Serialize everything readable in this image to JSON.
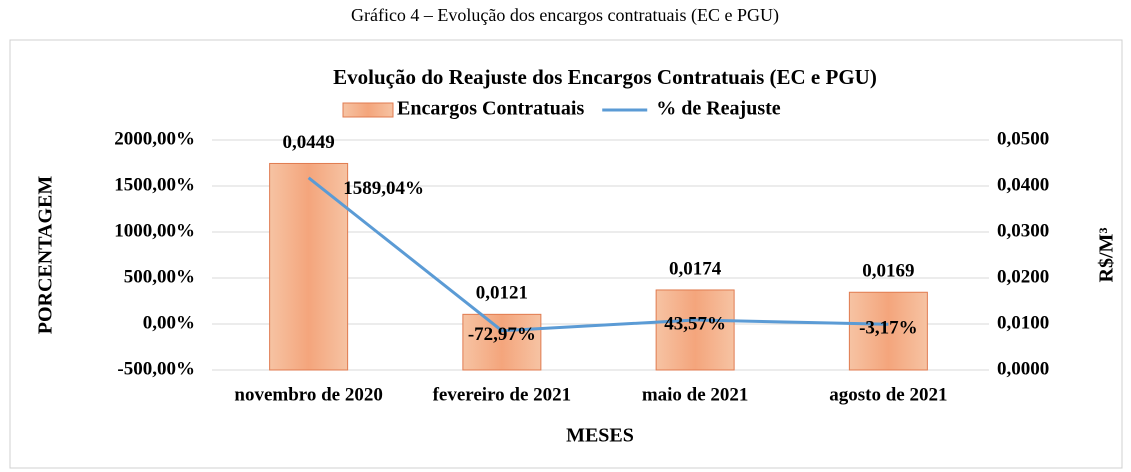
{
  "chart_data": {
    "type": "bar-line",
    "caption": "Gráfico 4 – Evolução dos encargos contratuais (EC e PGU)",
    "title": "Evolução do Reajuste dos Encargos Contratuais (EC e PGU)",
    "x_label": "MESES",
    "y_label": "PORCENTAGEM",
    "y2_label": "R$/M³",
    "categories": [
      "novembro de 2020",
      "fevereiro de 2021",
      "maio de 2021",
      "agosto de 2021"
    ],
    "series": [
      {
        "name": "Encargos Contratuais",
        "type": "bar",
        "axis": "y2",
        "color": "#f4b183",
        "edge": "#e07b50",
        "values": [
          0.0449,
          0.0121,
          0.0174,
          0.0169
        ],
        "value_labels": [
          "0,0449",
          "0,0121",
          "0,0174",
          "0,0169"
        ]
      },
      {
        "name": "% de Reajuste",
        "type": "line",
        "axis": "y",
        "color": "#5b9bd5",
        "values": [
          1589.04,
          -72.97,
          43.57,
          -3.17
        ],
        "value_labels": [
          "1589,04%",
          "-72,97%",
          "43,57%",
          "-3,17%"
        ]
      }
    ],
    "ylim": [
      -500,
      2000
    ],
    "yticks": [
      {
        "value": -500,
        "label": "-500,00%"
      },
      {
        "value": 0,
        "label": "0,00%"
      },
      {
        "value": 500,
        "label": "500,00%"
      },
      {
        "value": 1000,
        "label": "1000,00%"
      },
      {
        "value": 1500,
        "label": "1500,00%"
      },
      {
        "value": 2000,
        "label": "2000,00%"
      }
    ],
    "y2lim": [
      0,
      0.05
    ],
    "y2ticks": [
      {
        "value": 0,
        "label": "0,0000"
      },
      {
        "value": 0.01,
        "label": "0,0100"
      },
      {
        "value": 0.02,
        "label": "0,0200"
      },
      {
        "value": 0.03,
        "label": "0,0300"
      },
      {
        "value": 0.04,
        "label": "0,0400"
      },
      {
        "value": 0.05,
        "label": "0,0500"
      }
    ],
    "grid": true,
    "legend": "top"
  }
}
